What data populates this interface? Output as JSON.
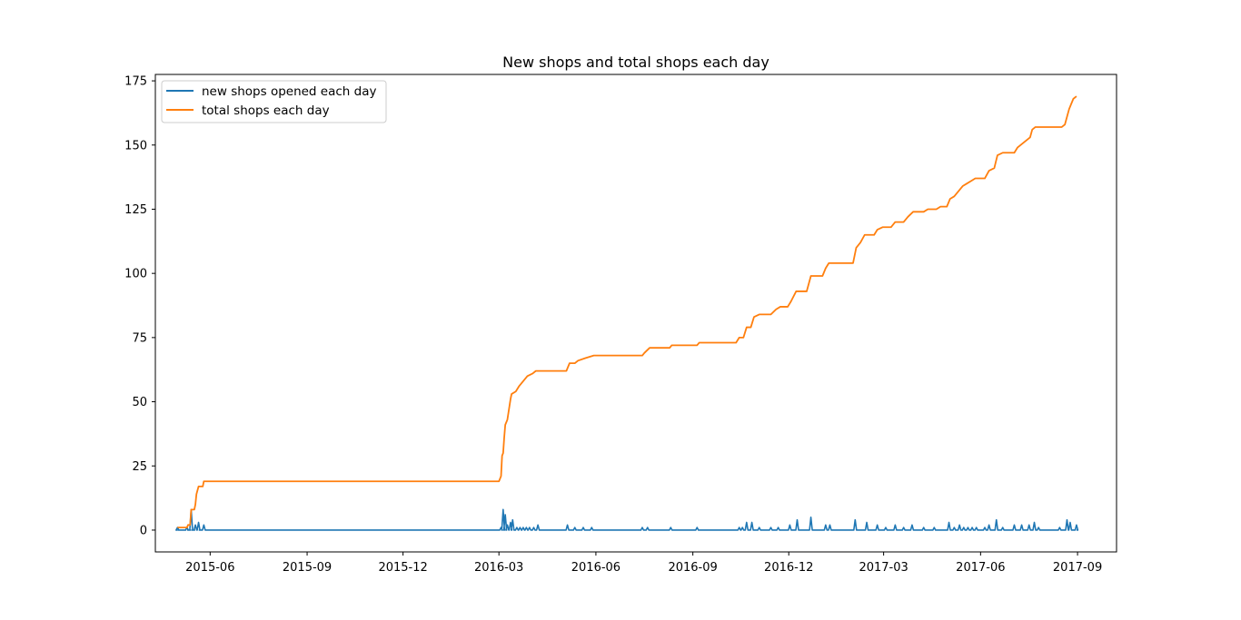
{
  "chart_data": {
    "type": "line",
    "title": "New shops and total shops each day",
    "xlabel": "",
    "ylabel": "",
    "xlim": [
      "2015-04-10",
      "2017-10-08"
    ],
    "ylim": [
      -8.5,
      177.5
    ],
    "x_ticks": [
      "2015-06",
      "2015-09",
      "2015-12",
      "2016-03",
      "2016-06",
      "2016-09",
      "2016-12",
      "2017-03",
      "2017-06",
      "2017-09"
    ],
    "y_ticks": [
      0,
      25,
      50,
      75,
      100,
      125,
      150,
      175
    ],
    "grid": false,
    "legend_position": "upper left",
    "series": [
      {
        "name": "new shops opened each day",
        "color": "#1f77b4",
        "style": "spikes",
        "baseline": 0,
        "points": [
          [
            "2015-05-01",
            1
          ],
          [
            "2015-05-03",
            0
          ],
          [
            "2015-05-10",
            1
          ],
          [
            "2015-05-12",
            0
          ],
          [
            "2015-05-14",
            8
          ],
          [
            "2015-05-16",
            0
          ],
          [
            "2015-05-18",
            2
          ],
          [
            "2015-05-21",
            3
          ],
          [
            "2015-05-23",
            0
          ],
          [
            "2015-05-26",
            2
          ],
          [
            "2016-03-03",
            1
          ],
          [
            "2016-03-05",
            8
          ],
          [
            "2016-03-07",
            6
          ],
          [
            "2016-03-09",
            2
          ],
          [
            "2016-03-12",
            3
          ],
          [
            "2016-03-14",
            4
          ],
          [
            "2016-03-18",
            1
          ],
          [
            "2016-03-21",
            1
          ],
          [
            "2016-03-24",
            1
          ],
          [
            "2016-03-27",
            1
          ],
          [
            "2016-03-30",
            1
          ],
          [
            "2016-04-03",
            1
          ],
          [
            "2016-04-07",
            2
          ],
          [
            "2016-05-05",
            2
          ],
          [
            "2016-05-12",
            1
          ],
          [
            "2016-05-20",
            1
          ],
          [
            "2016-05-28",
            1
          ],
          [
            "2016-07-15",
            1
          ],
          [
            "2016-07-20",
            1
          ],
          [
            "2016-08-11",
            1
          ],
          [
            "2016-09-05",
            1
          ],
          [
            "2016-10-15",
            1
          ],
          [
            "2016-10-18",
            1
          ],
          [
            "2016-10-22",
            3
          ],
          [
            "2016-10-27",
            3
          ],
          [
            "2016-11-03",
            1
          ],
          [
            "2016-11-14",
            1
          ],
          [
            "2016-11-21",
            1
          ],
          [
            "2016-12-02",
            2
          ],
          [
            "2016-12-09",
            4
          ],
          [
            "2016-12-22",
            5
          ],
          [
            "2017-01-05",
            2
          ],
          [
            "2017-01-09",
            2
          ],
          [
            "2017-02-02",
            4
          ],
          [
            "2017-02-13",
            3
          ],
          [
            "2017-02-23",
            2
          ],
          [
            "2017-03-03",
            1
          ],
          [
            "2017-03-12",
            2
          ],
          [
            "2017-03-20",
            1
          ],
          [
            "2017-03-28",
            2
          ],
          [
            "2017-04-08",
            1
          ],
          [
            "2017-04-18",
            1
          ],
          [
            "2017-05-02",
            3
          ],
          [
            "2017-05-07",
            1
          ],
          [
            "2017-05-12",
            2
          ],
          [
            "2017-05-16",
            1
          ],
          [
            "2017-05-20",
            1
          ],
          [
            "2017-05-24",
            1
          ],
          [
            "2017-05-28",
            1
          ],
          [
            "2017-06-05",
            1
          ],
          [
            "2017-06-09",
            2
          ],
          [
            "2017-06-16",
            4
          ],
          [
            "2017-06-22",
            1
          ],
          [
            "2017-07-03",
            2
          ],
          [
            "2017-07-10",
            2
          ],
          [
            "2017-07-17",
            2
          ],
          [
            "2017-07-22",
            3
          ],
          [
            "2017-07-26",
            1
          ],
          [
            "2017-08-15",
            1
          ],
          [
            "2017-08-22",
            4
          ],
          [
            "2017-08-25",
            3
          ],
          [
            "2017-08-31",
            2
          ]
        ]
      },
      {
        "name": "total shops each day",
        "color": "#ff7f0e",
        "style": "line",
        "points": [
          [
            "2015-05-01",
            1
          ],
          [
            "2015-05-10",
            1
          ],
          [
            "2015-05-11",
            2
          ],
          [
            "2015-05-13",
            2
          ],
          [
            "2015-05-14",
            8
          ],
          [
            "2015-05-17",
            8
          ],
          [
            "2015-05-18",
            10
          ],
          [
            "2015-05-19",
            14
          ],
          [
            "2015-05-21",
            17
          ],
          [
            "2015-05-25",
            17
          ],
          [
            "2015-05-26",
            19
          ],
          [
            "2016-03-01",
            19
          ],
          [
            "2016-03-03",
            21
          ],
          [
            "2016-03-04",
            29
          ],
          [
            "2016-03-05",
            30
          ],
          [
            "2016-03-06",
            36
          ],
          [
            "2016-03-07",
            41
          ],
          [
            "2016-03-09",
            43
          ],
          [
            "2016-03-12",
            51
          ],
          [
            "2016-03-13",
            53
          ],
          [
            "2016-03-17",
            54
          ],
          [
            "2016-03-20",
            56
          ],
          [
            "2016-03-24",
            58
          ],
          [
            "2016-03-28",
            60
          ],
          [
            "2016-04-02",
            61
          ],
          [
            "2016-04-05",
            62
          ],
          [
            "2016-05-04",
            62
          ],
          [
            "2016-05-07",
            65
          ],
          [
            "2016-05-12",
            65
          ],
          [
            "2016-05-15",
            66
          ],
          [
            "2016-05-22",
            67
          ],
          [
            "2016-05-30",
            68
          ],
          [
            "2016-07-15",
            68
          ],
          [
            "2016-07-17",
            69
          ],
          [
            "2016-07-22",
            71
          ],
          [
            "2016-08-10",
            71
          ],
          [
            "2016-08-12",
            72
          ],
          [
            "2016-09-05",
            72
          ],
          [
            "2016-09-07",
            73
          ],
          [
            "2016-10-12",
            73
          ],
          [
            "2016-10-15",
            75
          ],
          [
            "2016-10-19",
            75
          ],
          [
            "2016-10-22",
            79
          ],
          [
            "2016-10-26",
            79
          ],
          [
            "2016-10-29",
            83
          ],
          [
            "2016-11-03",
            84
          ],
          [
            "2016-11-14",
            84
          ],
          [
            "2016-11-19",
            86
          ],
          [
            "2016-11-23",
            87
          ],
          [
            "2016-11-30",
            87
          ],
          [
            "2016-12-03",
            89
          ],
          [
            "2016-12-08",
            93
          ],
          [
            "2016-12-18",
            93
          ],
          [
            "2016-12-22",
            99
          ],
          [
            "2017-01-02",
            99
          ],
          [
            "2017-01-05",
            102
          ],
          [
            "2017-01-08",
            104
          ],
          [
            "2017-01-31",
            104
          ],
          [
            "2017-02-03",
            110
          ],
          [
            "2017-02-07",
            112
          ],
          [
            "2017-02-11",
            115
          ],
          [
            "2017-02-20",
            115
          ],
          [
            "2017-02-23",
            117
          ],
          [
            "2017-02-28",
            118
          ],
          [
            "2017-03-08",
            118
          ],
          [
            "2017-03-12",
            120
          ],
          [
            "2017-03-20",
            120
          ],
          [
            "2017-03-24",
            122
          ],
          [
            "2017-03-29",
            124
          ],
          [
            "2017-04-08",
            124
          ],
          [
            "2017-04-12",
            125
          ],
          [
            "2017-04-20",
            125
          ],
          [
            "2017-04-24",
            126
          ],
          [
            "2017-04-30",
            126
          ],
          [
            "2017-05-03",
            129
          ],
          [
            "2017-05-07",
            130
          ],
          [
            "2017-05-11",
            132
          ],
          [
            "2017-05-15",
            134
          ],
          [
            "2017-05-19",
            135
          ],
          [
            "2017-05-23",
            136
          ],
          [
            "2017-05-27",
            137
          ],
          [
            "2017-06-05",
            137
          ],
          [
            "2017-06-09",
            140
          ],
          [
            "2017-06-14",
            141
          ],
          [
            "2017-06-17",
            146
          ],
          [
            "2017-06-22",
            147
          ],
          [
            "2017-07-03",
            147
          ],
          [
            "2017-07-06",
            149
          ],
          [
            "2017-07-12",
            151
          ],
          [
            "2017-07-18",
            153
          ],
          [
            "2017-07-20",
            156
          ],
          [
            "2017-07-23",
            157
          ],
          [
            "2017-08-17",
            157
          ],
          [
            "2017-08-20",
            158
          ],
          [
            "2017-08-24",
            164
          ],
          [
            "2017-08-26",
            166
          ],
          [
            "2017-08-28",
            168
          ],
          [
            "2017-08-31",
            169
          ]
        ]
      }
    ]
  }
}
